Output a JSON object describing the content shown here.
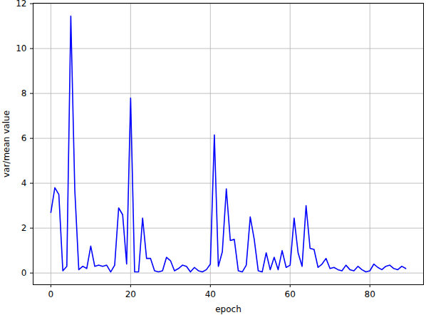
{
  "chart_data": {
    "type": "line",
    "x_label": "epoch",
    "y_label": "var/mean value",
    "x": [
      0,
      1,
      2,
      3,
      4,
      5,
      6,
      7,
      8,
      9,
      10,
      11,
      12,
      13,
      14,
      15,
      16,
      17,
      18,
      19,
      20,
      21,
      22,
      23,
      24,
      25,
      26,
      27,
      28,
      29,
      30,
      31,
      32,
      33,
      34,
      35,
      36,
      37,
      38,
      39,
      40,
      41,
      42,
      43,
      44,
      45,
      46,
      47,
      48,
      49,
      50,
      51,
      52,
      53,
      54,
      55,
      56,
      57,
      58,
      59,
      60,
      61,
      62,
      63,
      64,
      65,
      66,
      67,
      68,
      69,
      70,
      71,
      72,
      73,
      74,
      75,
      76,
      77,
      78,
      79,
      80,
      81,
      82,
      83,
      84,
      85,
      86,
      87,
      88,
      89
    ],
    "values": [
      2.7,
      3.8,
      3.5,
      0.1,
      0.3,
      11.45,
      3.7,
      0.15,
      0.3,
      0.2,
      1.2,
      0.3,
      0.35,
      0.3,
      0.35,
      0.05,
      0.35,
      2.9,
      2.6,
      0.4,
      7.8,
      0.05,
      0.05,
      2.45,
      0.65,
      0.65,
      0.1,
      0.05,
      0.1,
      0.7,
      0.55,
      0.1,
      0.2,
      0.35,
      0.3,
      0.05,
      0.25,
      0.1,
      0.05,
      0.15,
      0.4,
      6.15,
      0.3,
      0.95,
      3.75,
      1.45,
      1.5,
      0.1,
      0.05,
      0.35,
      2.5,
      1.5,
      0.1,
      0.05,
      0.9,
      0.15,
      0.7,
      0.15,
      1.0,
      0.25,
      0.35,
      2.45,
      0.9,
      0.3,
      3.0,
      1.1,
      1.05,
      0.25,
      0.4,
      0.65,
      0.2,
      0.25,
      0.15,
      0.1,
      0.35,
      0.15,
      0.1,
      0.3,
      0.15,
      0.05,
      0.1,
      0.4,
      0.25,
      0.15,
      0.3,
      0.35,
      0.2,
      0.15,
      0.3,
      0.2
    ],
    "color": "#0000ff",
    "xlim": [
      -4.45,
      93.45
    ],
    "xticks": [
      0,
      20,
      40,
      60,
      80
    ],
    "ylim": [
      -0.52,
      12.02
    ],
    "yticks": [
      0,
      2,
      4,
      6,
      8,
      10,
      12
    ],
    "grid": true
  }
}
